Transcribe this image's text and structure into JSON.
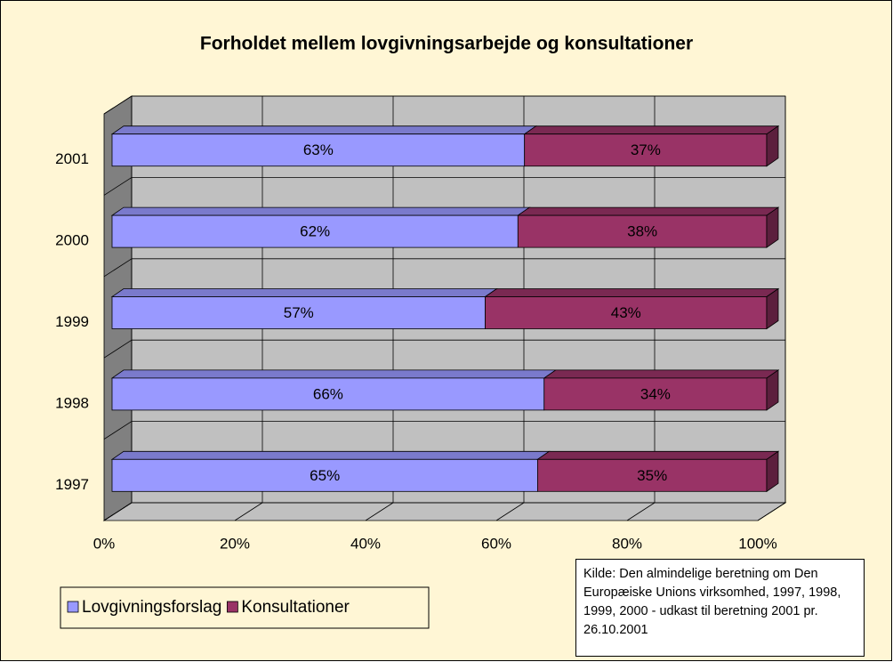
{
  "chart_data": {
    "type": "stacked_barh",
    "title": "Forholdet mellem lovgivningsarbejde og konsultationer",
    "categories": [
      "2001",
      "2000",
      "1999",
      "1998",
      "1997"
    ],
    "series": [
      {
        "name": "Lovgivningsforslag",
        "color": "#9999ff",
        "values": [
          63,
          62,
          57,
          66,
          65
        ],
        "value_labels": [
          "63%",
          "62%",
          "57%",
          "66%",
          "65%"
        ]
      },
      {
        "name": "Konsultationer",
        "color": "#993366",
        "values": [
          37,
          38,
          43,
          34,
          35
        ],
        "value_labels": [
          "37%",
          "38%",
          "43%",
          "34%",
          "35%"
        ]
      }
    ],
    "xlim": [
      0,
      100
    ],
    "xticks": [
      {
        "value": 0,
        "label": "0%"
      },
      {
        "value": 20,
        "label": "20%"
      },
      {
        "value": 40,
        "label": "40%"
      },
      {
        "value": 60,
        "label": "60%"
      },
      {
        "value": 80,
        "label": "80%"
      },
      {
        "value": 100,
        "label": "100%"
      }
    ],
    "grid": true,
    "annotation": "Kilde: Den almindelige beretning om Den Europæiske Unions virksomhed, 1997, 1998, 1999, 2000 - udkast til beretning 2001 pr. 26.10.2001"
  }
}
